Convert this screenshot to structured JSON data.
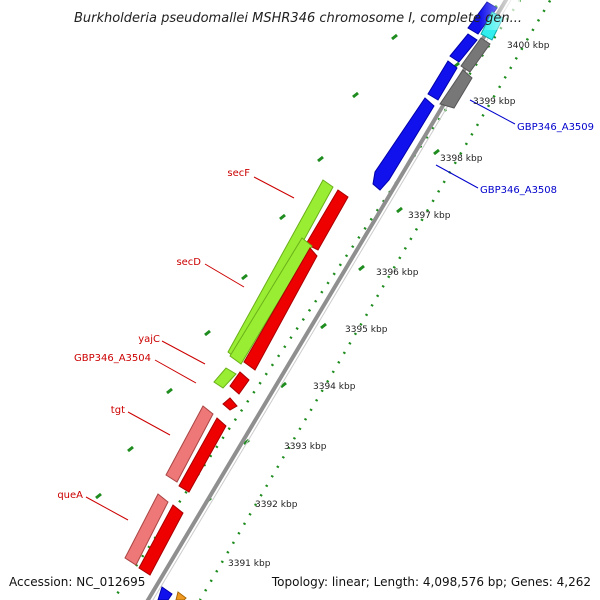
{
  "title": "Burkholderia pseudomallei MSHR346 chromosome I, complete gen...",
  "accession_label": "Accession: NC_012695",
  "topology_label": "Topology: linear; Length: 4,098,576 bp; Genes: 4,262",
  "colors": {
    "backbone": "#8f8f8f",
    "tick_dot": "#1e8c1e",
    "label_left": "#cc0000",
    "label_right": "#0000cc",
    "secF": "#99ee33",
    "secD": "#99ee33",
    "red": "#ee0000",
    "pink": "#ee7777",
    "blue": "#1111ee",
    "grey": "#777777",
    "cyan": "#33eeee"
  },
  "scale_labels": [
    "3400 kbp",
    "3399 kbp",
    "3398 kbp",
    "3397 kbp",
    "3396 kbp",
    "3395 kbp",
    "3394 kbp",
    "3393 kbp",
    "3392 kbp",
    "3391 kbp"
  ],
  "gene_labels": [
    "secF",
    "secD",
    "yajC",
    "GBP346_A3504",
    "tgt",
    "queA",
    "GBP346_A3509",
    "GBP346_A3508"
  ]
}
